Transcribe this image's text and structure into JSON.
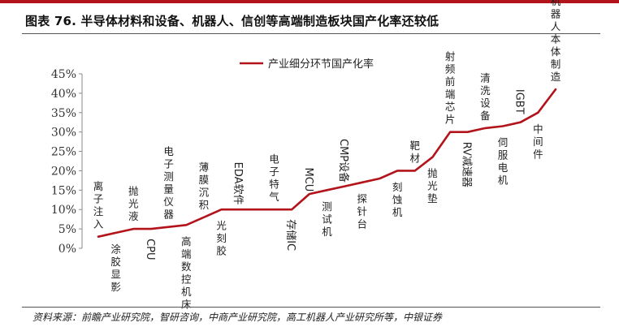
{
  "title": "图表 76. 半导体材料和设备、机器人、信创等高端制造板块国产化率还较低",
  "source": "资料来源：前瞻产业研究院，智研咨询，中商产业研究院，高工机器人产业研究所等，中银证券",
  "colors": {
    "line": "#b3131a",
    "rule": "#b3131a",
    "axis": "#8a8a8a"
  },
  "chart_data": {
    "type": "line",
    "title": "",
    "xlabel": "",
    "ylabel": "",
    "ylim": [
      0,
      45
    ],
    "yticks": [
      "0%",
      "5%",
      "10%",
      "15%",
      "20%",
      "25%",
      "30%",
      "35%",
      "40%",
      "45%"
    ],
    "legend": {
      "position": "top",
      "entries": [
        "产业细分环节国产化率"
      ]
    },
    "grid": false,
    "series": [
      {
        "name": "产业细分环节国产化率",
        "values": [
          3,
          4,
          5,
          5,
          5.5,
          6,
          8,
          10,
          10,
          10,
          10,
          10,
          14,
          15,
          16,
          17,
          18,
          20,
          20,
          23.5,
          30,
          30,
          31,
          31.5,
          32.5,
          35,
          41
        ]
      }
    ],
    "categories": [
      "离子注入",
      "涂胶显影",
      "抛光液",
      "CPU",
      "电子测量仪器",
      "高端数控机床",
      "薄膜沉积",
      "光刻胶",
      "EDA软件",
      "",
      "电子特气",
      "存储IC",
      "MCU",
      "测试机",
      "CMP设备",
      "探针台",
      "",
      "刻蚀机",
      "靶材",
      "抛光垫",
      "射频前端芯片",
      "RV减速器",
      "清洗设备",
      "伺服电机",
      "IGBT",
      "中间件",
      "机器人本体制造"
    ],
    "labels": [
      {
        "text": "离子注入",
        "style": "vertical",
        "pos": "above",
        "idx": 0
      },
      {
        "text": "涂胶显影",
        "style": "vertical",
        "pos": "below",
        "idx": 1
      },
      {
        "text": "抛光液",
        "style": "vertical",
        "pos": "above",
        "idx": 2
      },
      {
        "text": "CPU",
        "style": "rotated",
        "pos": "below",
        "idx": 3
      },
      {
        "text": "电子测量仪器",
        "style": "vertical",
        "pos": "above",
        "idx": 4
      },
      {
        "text": "高端数控机床",
        "style": "vertical",
        "pos": "below",
        "idx": 5
      },
      {
        "text": "薄膜沉积",
        "style": "vertical",
        "pos": "above",
        "idx": 6
      },
      {
        "text": "光刻胶",
        "style": "vertical",
        "pos": "below",
        "idx": 7
      },
      {
        "text": "EDA软件",
        "style": "rotated",
        "pos": "above",
        "idx": 8
      },
      {
        "text": "电子特气",
        "style": "vertical",
        "pos": "above",
        "idx": 10
      },
      {
        "text": "存储IC",
        "style": "rotated",
        "pos": "below",
        "idx": 11
      },
      {
        "text": "MCU",
        "style": "rotated",
        "pos": "above",
        "idx": 12
      },
      {
        "text": "测试机",
        "style": "vertical",
        "pos": "below",
        "idx": 13
      },
      {
        "text": "CMP设备",
        "style": "rotated",
        "pos": "above",
        "idx": 14
      },
      {
        "text": "探针台",
        "style": "vertical",
        "pos": "below",
        "idx": 15
      },
      {
        "text": "刻蚀机",
        "style": "vertical",
        "pos": "below",
        "idx": 17
      },
      {
        "text": "靶材",
        "style": "vertical",
        "pos": "above",
        "idx": 18
      },
      {
        "text": "抛光垫",
        "style": "vertical",
        "pos": "below",
        "idx": 19
      },
      {
        "text": "射频前端芯片",
        "style": "vertical",
        "pos": "above",
        "idx": 20
      },
      {
        "text": "RV减速器",
        "style": "rotated",
        "pos": "below",
        "idx": 21
      },
      {
        "text": "清洗设备",
        "style": "vertical",
        "pos": "above",
        "idx": 22
      },
      {
        "text": "伺服电机",
        "style": "vertical",
        "pos": "below",
        "idx": 23
      },
      {
        "text": "IGBT",
        "style": "rotated",
        "pos": "above",
        "idx": 24
      },
      {
        "text": "中间件",
        "style": "vertical",
        "pos": "below",
        "idx": 25
      },
      {
        "text": "机器人本体制造",
        "style": "vertical",
        "pos": "above",
        "idx": 26
      }
    ]
  }
}
